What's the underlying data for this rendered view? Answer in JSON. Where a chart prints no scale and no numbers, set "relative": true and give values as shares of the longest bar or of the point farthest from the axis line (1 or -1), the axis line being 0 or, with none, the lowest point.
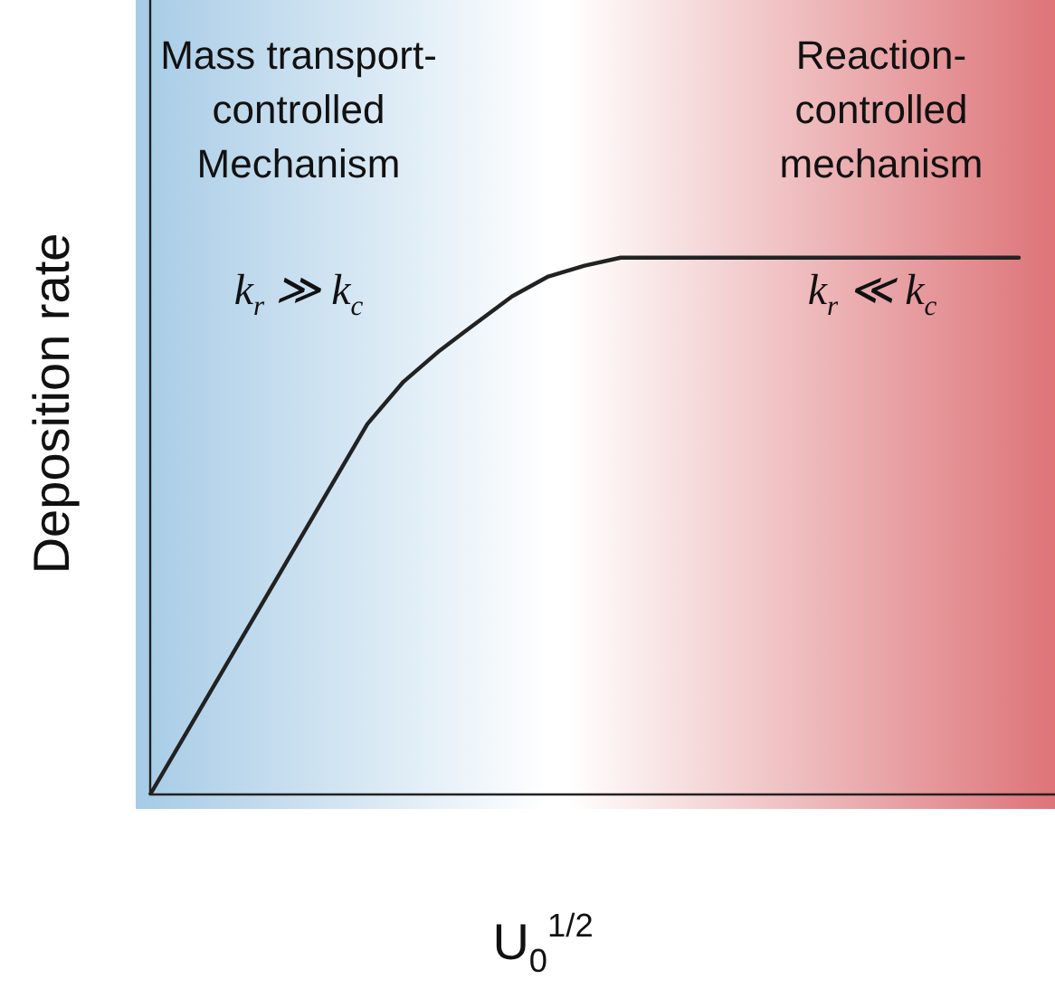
{
  "chart_data": {
    "type": "line",
    "relative": true,
    "xlabel": "U$_{0}$$^{1/2}$",
    "ylabel": "Deposition rate",
    "color": "#222222",
    "marker": "none",
    "line_style": "solid",
    "grid": false,
    "legend": false,
    "categories": [
      null,
      null,
      null,
      null,
      null,
      null,
      null,
      null,
      null,
      null,
      null,
      null,
      null,
      null,
      null,
      null,
      null,
      null,
      null,
      null,
      null,
      null,
      null,
      null,
      null,
      null
    ],
    "values": [
      0,
      0.115,
      0.23,
      0.345,
      0.46,
      0.575,
      0.69,
      0.769,
      0.827,
      0.878,
      0.928,
      0.965,
      0.985,
      1,
      1,
      1,
      1,
      1,
      1,
      1,
      1,
      1,
      1,
      1,
      1,
      null
    ],
    "annotations": [
      "Mass transport-\ncontrolled\nMechanism",
      "Reaction-\ncontrolled\nmechanism",
      "k$_{r}$ ≫ k$_{c}$",
      "k$_{r}$ ≪ k$_{c}$"
    ]
  }
}
